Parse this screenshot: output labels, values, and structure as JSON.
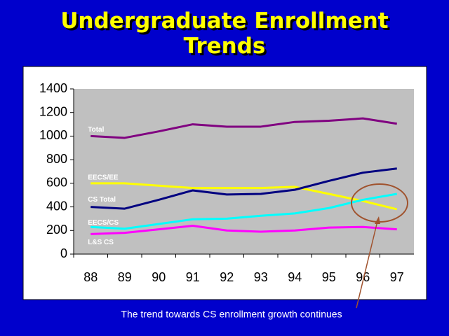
{
  "chart_data": {
    "type": "line",
    "title": [
      "Undergraduate Enrollment",
      "Trends"
    ],
    "annotation": "The trend towards CS enrollment growth continues",
    "categories": [
      "88",
      "89",
      "90",
      "91",
      "92",
      "93",
      "94",
      "95",
      "96",
      "97"
    ],
    "series": [
      {
        "name": "Total",
        "color": "#800080",
        "values": [
          1000,
          985,
          1040,
          1100,
          1080,
          1080,
          1120,
          1130,
          1150,
          1105
        ]
      },
      {
        "name": "EECS/EE",
        "color": "#ffff00",
        "values": [
          600,
          600,
          580,
          560,
          560,
          560,
          570,
          510,
          450,
          380
        ]
      },
      {
        "name": "CS Total",
        "color": "#000080",
        "values": [
          400,
          385,
          460,
          540,
          505,
          510,
          545,
          620,
          690,
          725
        ]
      },
      {
        "name": "EECS/CS",
        "color": "#00ffff",
        "values": [
          230,
          215,
          255,
          295,
          300,
          325,
          345,
          390,
          460,
          510
        ]
      },
      {
        "name": "L&S CS",
        "color": "#ff00ff",
        "values": [
          170,
          180,
          210,
          240,
          200,
          190,
          200,
          225,
          230,
          210
        ]
      }
    ],
    "ylim": [
      0,
      1400
    ],
    "yticks": [
      0,
      200,
      400,
      600,
      800,
      1000,
      1200,
      1400
    ],
    "grid": false
  }
}
